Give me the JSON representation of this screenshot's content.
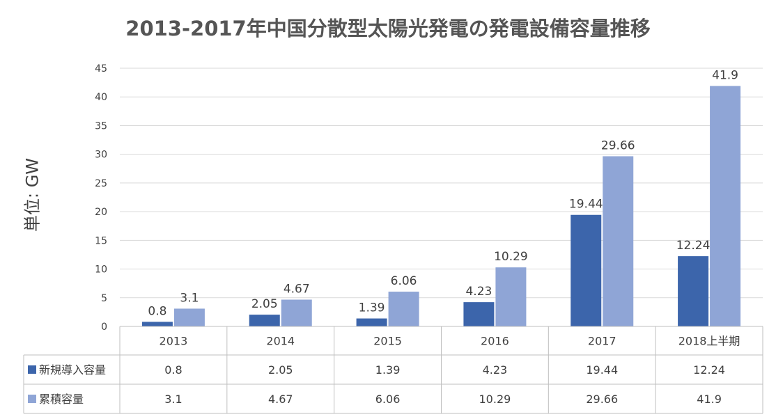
{
  "chart_data": {
    "type": "bar",
    "title": "2013-2017年中国分散型太陽光発電の発電設備容量推移",
    "ylabel": "単位: GW",
    "xlabel": "",
    "ylim": [
      0,
      45
    ],
    "yticks": [
      "0",
      "5",
      "10",
      "15",
      "20",
      "25",
      "30",
      "35",
      "40",
      "45"
    ],
    "categories": [
      "2013",
      "2014",
      "2015",
      "2016",
      "2017",
      "2018上半期"
    ],
    "series": [
      {
        "name": "新規導入容量",
        "color": "#3c65ab",
        "values": [
          0.8,
          2.05,
          1.39,
          4.23,
          19.44,
          12.24
        ],
        "labels": [
          "0.8",
          "2.05",
          "1.39",
          "4.23",
          "19.44",
          "12.24"
        ]
      },
      {
        "name": "累積容量",
        "color": "#8fa5d6",
        "values": [
          3.1,
          4.67,
          6.06,
          10.29,
          29.66,
          41.9
        ],
        "labels": [
          "3.1",
          "4.67",
          "6.06",
          "10.29",
          "29.66",
          "41.9"
        ]
      }
    ],
    "grid": true,
    "legend": "data-table-left"
  }
}
